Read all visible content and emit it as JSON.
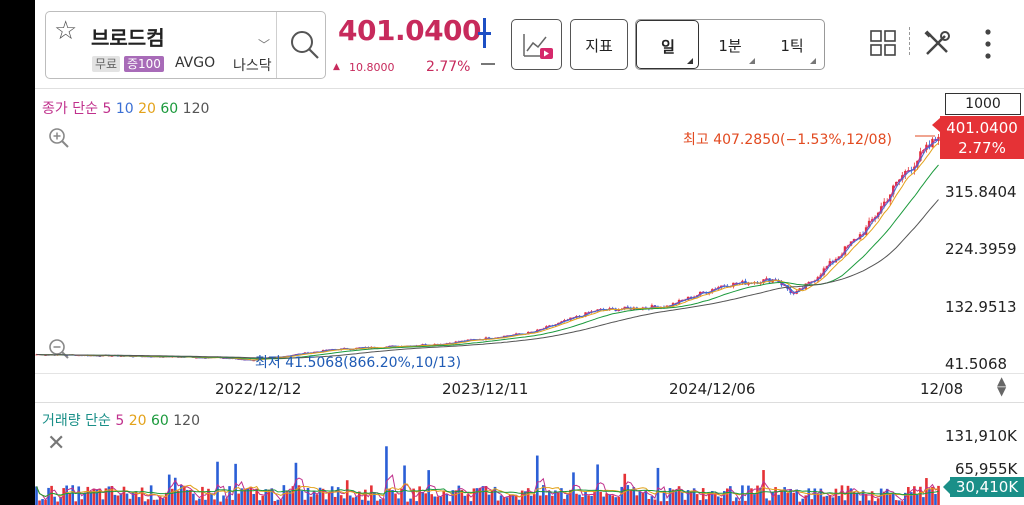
{
  "stock": {
    "name": "브로드컴",
    "badge_free": "무료",
    "badge_margin": "증100",
    "ticker": "AVGO",
    "exchange": "나스닥"
  },
  "quote": {
    "price": "401.0400",
    "change_arrow": "▲",
    "change_abs": "10.8000",
    "change_pct": "2.77%"
  },
  "toolbar": {
    "chart_select_icon": "chart-video-icon",
    "indicator_label": "지표",
    "periods": [
      "일",
      "1분",
      "1틱"
    ],
    "selected_period": "일",
    "grid_icon": "grid-icon",
    "tools_icon": "tools-icon",
    "more_icon": "more-vertical-icon"
  },
  "price_legend": {
    "title": "종가 단순",
    "mas": [
      {
        "label": "5",
        "color": "#c0308c"
      },
      {
        "label": "10",
        "color": "#3b6fd4"
      },
      {
        "label": "20",
        "color": "#e3a21a"
      },
      {
        "label": "60",
        "color": "#1b9a3c"
      },
      {
        "label": "120",
        "color": "#555555"
      }
    ]
  },
  "range_count": "1000",
  "current_tag": {
    "price": "401.0400",
    "pct": "2.77%"
  },
  "y_axis": [
    "315.8404",
    "224.3959",
    "132.9513",
    "41.5068"
  ],
  "high_note": "최고 407.2850(−1.53%,12/08)",
  "low_note": "최저 41.5068(866.20%,10/13)",
  "x_axis": [
    "2022/12/12",
    "2023/12/11",
    "2024/12/06",
    "12/08"
  ],
  "volume": {
    "legend_title": "거래량 단순",
    "mas": [
      {
        "label": "5",
        "color": "#c0308c"
      },
      {
        "label": "20",
        "color": "#e3a21a"
      },
      {
        "label": "60",
        "color": "#1b9a3c"
      },
      {
        "label": "120",
        "color": "#555555"
      }
    ],
    "y_axis": [
      "131,910K",
      "65,955K"
    ],
    "current": "30,410K"
  },
  "colors": {
    "up": "#e53236",
    "down": "#2b5fd6",
    "price": "#c72a5c",
    "volume_tag": "#1a8f88"
  }
}
